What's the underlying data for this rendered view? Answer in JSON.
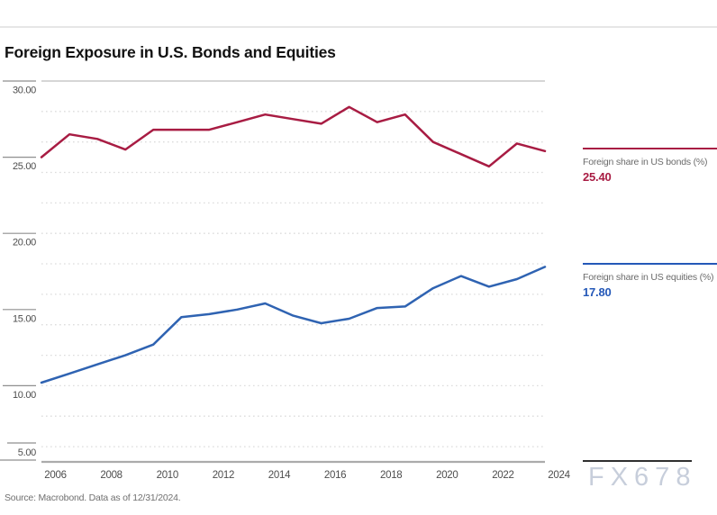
{
  "page": {
    "title": "Foreign Exposure in U.S. Bonds and Equities",
    "source_note": "Source: Macrobond. Data as of 12/31/2024.",
    "watermark": "FX678"
  },
  "legend": {
    "bonds": {
      "label": "Foreign share in US bonds (%)",
      "value": "25.40",
      "color": "#a81c43"
    },
    "equities": {
      "label": "Foreign share in US equities (%)",
      "value": "17.80",
      "color": "#2458b8"
    }
  },
  "chart_data": {
    "type": "line",
    "title": "Foreign Exposure in U.S. Bonds and Equities",
    "x": [
      2006,
      2007,
      2008,
      2009,
      2010,
      2011,
      2012,
      2013,
      2014,
      2015,
      2016,
      2017,
      2018,
      2019,
      2020,
      2021,
      2022,
      2023,
      2024
    ],
    "series": [
      {
        "name": "Foreign share in US bonds (%)",
        "color": "#a81c43",
        "last_value_label": "25.40",
        "values": [
          25.0,
          26.5,
          26.2,
          25.5,
          26.8,
          26.8,
          26.8,
          27.3,
          27.8,
          27.5,
          27.2,
          28.3,
          27.3,
          27.8,
          26.0,
          25.2,
          24.4,
          25.9,
          25.4
        ]
      },
      {
        "name": "Foreign share in US equities (%)",
        "color": "#2f63b2",
        "last_value_label": "17.80",
        "values": [
          10.2,
          10.8,
          11.4,
          12.0,
          12.7,
          14.5,
          14.7,
          15.0,
          15.4,
          14.6,
          14.1,
          14.4,
          15.1,
          15.2,
          16.4,
          17.2,
          16.5,
          17.0,
          17.8
        ]
      }
    ],
    "ylim": [
      5,
      30
    ],
    "yticks": [
      30,
      25,
      20,
      15,
      10,
      5
    ],
    "ytick_labels": [
      "30.00",
      "25.00",
      "20.00",
      "15.00",
      "10.00",
      "5.00"
    ],
    "grid_values": [
      28,
      26,
      24,
      22,
      20,
      18,
      16,
      14,
      12,
      10,
      8,
      6
    ],
    "xticks": [
      2006,
      2008,
      2010,
      2012,
      2014,
      2016,
      2018,
      2020,
      2022,
      2024
    ],
    "xtick_labels": [
      "2006",
      "2008",
      "2010",
      "2012",
      "2014",
      "2016",
      "2018",
      "2020",
      "2022",
      "2024"
    ],
    "grid": "dotted-horizontal",
    "legend_position": "right"
  }
}
